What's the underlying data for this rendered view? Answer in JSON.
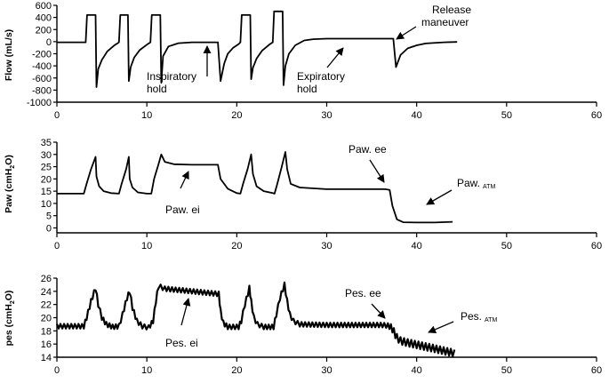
{
  "chart_data": [
    {
      "type": "line",
      "ylabel": "Flow (mL/s)",
      "xlim": [
        0,
        60
      ],
      "ylim": [
        -1000,
        600
      ],
      "xticks": [
        0,
        10,
        20,
        30,
        40,
        50,
        60
      ],
      "yticks": [
        600,
        400,
        200,
        0,
        -200,
        -400,
        -600,
        -800,
        -1000
      ],
      "tick_labels_x": [
        "0",
        "10",
        "20",
        "30",
        "40",
        "50",
        "60"
      ],
      "tick_labels_y": [
        "600",
        "400",
        "200",
        "0",
        "-200",
        "-400",
        "-600",
        "-800",
        "-1000"
      ],
      "series": [
        {
          "x": [
            0,
            3.2,
            3.35,
            4.3,
            4.4,
            4.6,
            5,
            5.6,
            6.4,
            6.9,
            7.05,
            7.9,
            8,
            8.2,
            8.6,
            9.2,
            10,
            10.4,
            10.55,
            11.5,
            11.6,
            11.8,
            12.4,
            13.5,
            15,
            17.9,
            18.2,
            18.6,
            19,
            19.6,
            20.2,
            20.4,
            20.55,
            21.5,
            21.6,
            21.8,
            22.2,
            22.8,
            23.6,
            24,
            24.15,
            25.1,
            25.2,
            25.4,
            25.8,
            26.5,
            27.5,
            28.5,
            30,
            33,
            36,
            37,
            37.4,
            37.7,
            38.2,
            39,
            40,
            41,
            43,
            44.5
          ],
          "y": [
            -10,
            -10,
            440,
            440,
            -750,
            -450,
            -300,
            -160,
            -60,
            -10,
            440,
            440,
            -650,
            -420,
            -260,
            -140,
            -50,
            -10,
            440,
            440,
            -680,
            -240,
            -80,
            -25,
            -10,
            -10,
            -650,
            -360,
            -200,
            -100,
            -40,
            -10,
            440,
            440,
            -620,
            -430,
            -280,
            -150,
            -50,
            -10,
            500,
            500,
            -720,
            -400,
            -200,
            -60,
            20,
            40,
            50,
            50,
            50,
            50,
            50,
            -420,
            -220,
            -110,
            -60,
            -30,
            -10,
            -5
          ]
        }
      ],
      "annotations": [
        {
          "text": "Inspiratory hold"
        },
        {
          "text": "Expiratory hold"
        },
        {
          "text": "Release maneuver"
        }
      ]
    },
    {
      "type": "line",
      "ylabel": "Paw (cmH₂O)",
      "xlim": [
        0,
        60
      ],
      "ylim": [
        -2,
        35
      ],
      "xticks": [
        0,
        10,
        20,
        30,
        40,
        50,
        60
      ],
      "yticks": [
        35,
        30,
        25,
        20,
        15,
        10,
        5,
        0
      ],
      "tick_labels_x": [
        "0",
        "10",
        "20",
        "30",
        "40",
        "50",
        "60"
      ],
      "tick_labels_y": [
        "35",
        "30",
        "25",
        "20",
        "15",
        "10",
        "5",
        "0"
      ],
      "series": [
        {
          "x": [
            0,
            3,
            3.3,
            3.8,
            4.3,
            4.4,
            4.7,
            5.2,
            6,
            6.9,
            7.2,
            7.7,
            8,
            8.1,
            8.4,
            9,
            10,
            10.5,
            10.8,
            11.3,
            11.6,
            12,
            13,
            15,
            17.5,
            17.9,
            18.2,
            19,
            20,
            20.4,
            20.7,
            21.2,
            21.6,
            21.8,
            22.2,
            23,
            24,
            24.2,
            24.5,
            25,
            25.4,
            25.6,
            26,
            27,
            30,
            33,
            36.5,
            37,
            37.3,
            37.8,
            38.5,
            40,
            42,
            44
          ],
          "y": [
            14,
            14,
            18,
            24,
            29,
            21,
            17,
            15,
            14.2,
            14,
            18,
            24,
            29,
            20,
            16.5,
            14.5,
            14,
            14,
            20,
            26,
            30,
            27,
            26,
            25.8,
            25.8,
            25.8,
            20,
            16,
            14.2,
            14,
            18,
            24,
            30,
            22,
            17,
            15,
            14.2,
            14,
            18,
            25,
            31,
            24,
            18,
            16.5,
            15.8,
            15.8,
            15.8,
            15.5,
            9,
            3.5,
            2.3,
            2.2,
            2.2,
            2.5
          ]
        }
      ],
      "annotations": [
        {
          "text": "Paw. ei"
        },
        {
          "text": "Paw. ee"
        },
        {
          "text": "Paw.",
          "subscript": "ATM"
        }
      ]
    },
    {
      "type": "line",
      "ylabel": "pes (cmH₂O)",
      "xlim": [
        0,
        60
      ],
      "ylim": [
        14,
        26
      ],
      "xticks": [
        0,
        10,
        20,
        30,
        40,
        50,
        60
      ],
      "yticks": [
        26,
        24,
        22,
        20,
        18,
        16,
        14
      ],
      "tick_labels_x": [
        "0",
        "10",
        "20",
        "30",
        "40",
        "50",
        "60"
      ],
      "tick_labels_y": [
        "26",
        "24",
        "22",
        "20",
        "18",
        "16",
        "14"
      ],
      "series": [
        {
          "x": [
            0,
            3,
            3.3,
            3.8,
            4.3,
            4.6,
            5,
            5.5,
            6.2,
            6.9,
            7.3,
            7.8,
            8.1,
            8.4,
            8.9,
            9.5,
            10.2,
            10.7,
            11,
            11.3,
            12,
            15,
            18,
            18.2,
            18.5,
            19,
            20.2,
            20.5,
            20.9,
            21.4,
            21.6,
            21.9,
            22.3,
            23,
            24.1,
            24.4,
            24.8,
            25.3,
            25.6,
            25.9,
            26.3,
            27,
            30,
            33,
            36,
            36.8,
            37.3,
            37.8,
            38.2,
            39,
            40,
            42,
            44.2
          ],
          "y": [
            18.7,
            18.7,
            20,
            22.5,
            24.5,
            22,
            20,
            19,
            18.6,
            18.7,
            20.5,
            23,
            24,
            21.5,
            19.5,
            18.7,
            18.5,
            19.5,
            22.5,
            24.8,
            24.4,
            24,
            23.6,
            21,
            19.2,
            18.6,
            18.6,
            19.5,
            22,
            24.5,
            22.5,
            20,
            19,
            18.6,
            18.6,
            20.5,
            23,
            25,
            22.5,
            20.5,
            19.5,
            19,
            18.9,
            18.9,
            18.9,
            18.8,
            18.3,
            17,
            16.5,
            16.2,
            15.9,
            15.3,
            14.6
          ]
        }
      ],
      "annotations": [
        {
          "text": "Pes. ei"
        },
        {
          "text": "Pes. ee"
        },
        {
          "text": "Pes.",
          "subscript": "ATM"
        }
      ]
    }
  ]
}
